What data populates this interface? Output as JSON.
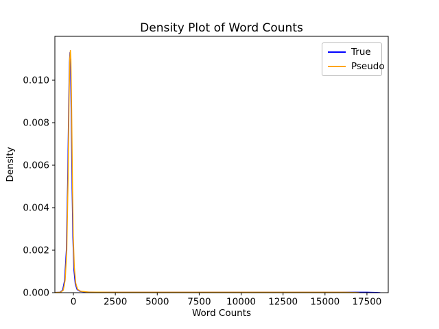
{
  "chart_data": {
    "type": "line",
    "title": "Density Plot of Word Counts",
    "xlabel": "Word Counts",
    "ylabel": "Density",
    "xlim": [
      -1104,
      18770
    ],
    "ylim": [
      0,
      0.012065
    ],
    "x_ticks": [
      0,
      2500,
      5000,
      7500,
      10000,
      12500,
      15000,
      17500
    ],
    "x_tick_labels": [
      "0",
      "2500",
      "5000",
      "7500",
      "10000",
      "12500",
      "15000",
      "17500"
    ],
    "y_ticks": [
      0,
      0.002,
      0.004,
      0.006,
      0.008,
      0.01
    ],
    "y_tick_labels": [
      "0.000",
      "0.002",
      "0.004",
      "0.006",
      "0.008",
      "0.010"
    ],
    "grid": false,
    "legend_position": "upper right",
    "peak_density_true": 0.0113,
    "peak_density_pseudo": 0.0114,
    "series": [
      {
        "name": "True",
        "color": "#0000ff",
        "points": [
          [
            -1104,
            1e-05
          ],
          [
            -800,
            2e-05
          ],
          [
            -640,
            0.00012
          ],
          [
            -520,
            0.0006
          ],
          [
            -420,
            0.002
          ],
          [
            -340,
            0.0052
          ],
          [
            -280,
            0.0088
          ],
          [
            -235,
            0.0108
          ],
          [
            -205,
            0.0113
          ],
          [
            -175,
            0.0109
          ],
          [
            -130,
            0.0085
          ],
          [
            -80,
            0.0052
          ],
          [
            -30,
            0.0026
          ],
          [
            30,
            0.0011
          ],
          [
            110,
            0.00042
          ],
          [
            220,
            0.00015
          ],
          [
            400,
            6e-05
          ],
          [
            800,
            3e-05
          ],
          [
            2000,
            2e-05
          ],
          [
            6000,
            2e-05
          ],
          [
            12000,
            2e-05
          ],
          [
            16000,
            2e-05
          ],
          [
            17500,
            2e-05
          ],
          [
            18100,
            1e-05
          ],
          [
            18280,
            0
          ]
        ]
      },
      {
        "name": "Pseudo",
        "color": "#ffa500",
        "points": [
          [
            -1104,
            1e-05
          ],
          [
            -760,
            2e-05
          ],
          [
            -600,
            0.00012
          ],
          [
            -490,
            0.0006
          ],
          [
            -395,
            0.002
          ],
          [
            -320,
            0.0052
          ],
          [
            -260,
            0.009
          ],
          [
            -215,
            0.011
          ],
          [
            -180,
            0.0114
          ],
          [
            -150,
            0.011
          ],
          [
            -105,
            0.0086
          ],
          [
            -60,
            0.0054
          ],
          [
            -10,
            0.0027
          ],
          [
            55,
            0.0012
          ],
          [
            140,
            0.00045
          ],
          [
            250,
            0.00016
          ],
          [
            430,
            7e-05
          ],
          [
            900,
            3e-05
          ],
          [
            2200,
            2e-05
          ],
          [
            7000,
            2e-05
          ],
          [
            13000,
            2e-05
          ],
          [
            16000,
            2e-05
          ],
          [
            16800,
            1e-05
          ],
          [
            17050,
            0
          ]
        ]
      }
    ]
  }
}
